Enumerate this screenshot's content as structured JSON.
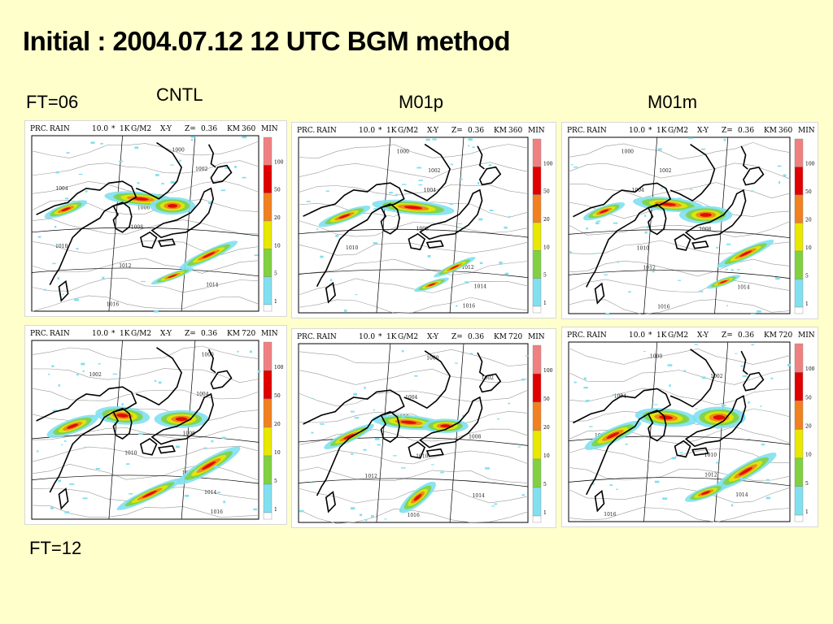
{
  "slide": {
    "title": "Initial : 2004.07.12 12 UTC BGM method",
    "label_ft06": "FT=06",
    "label_cntl": "CNTL",
    "label_m01p": "M01p",
    "label_m01m": "M01m",
    "label_ft12": "FT=12"
  },
  "panel_header": {
    "prc": "PRC.",
    "rain": "RAIN",
    "value": "10.0",
    "unit_k": "1K",
    "unit_g": "G/M2",
    "xy": "X-Y",
    "z": "Z=",
    "zval": "0.36",
    "km": "KM",
    "min": "MIN"
  },
  "panels": [
    {
      "name": "CNTL",
      "ft": "FT=06",
      "minutes": "360"
    },
    {
      "name": "M01p",
      "ft": "FT=06",
      "minutes": "360"
    },
    {
      "name": "M01m",
      "ft": "FT=06",
      "minutes": "360"
    },
    {
      "name": "CNTL",
      "ft": "FT=12",
      "minutes": "720"
    },
    {
      "name": "M01p",
      "ft": "FT=12",
      "minutes": "720"
    },
    {
      "name": "M01m",
      "ft": "FT=12",
      "minutes": "720"
    }
  ],
  "colorbar": {
    "levels": [
      "100",
      "50",
      "20",
      "10",
      "5",
      "1"
    ],
    "colors": [
      "#F08080",
      "#E00000",
      "#F08020",
      "#E8E800",
      "#80D040",
      "#80E0F0"
    ]
  },
  "isobars": [
    "1000",
    "1002",
    "1004",
    "1006",
    "1008",
    "1010",
    "1012",
    "1014",
    "1016"
  ]
}
